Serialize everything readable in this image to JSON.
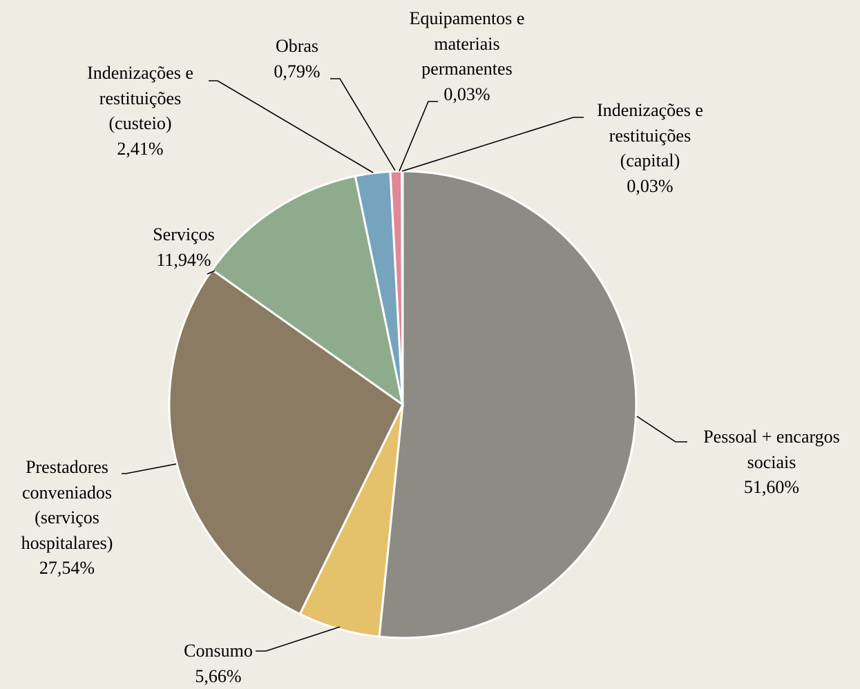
{
  "chart_data": {
    "type": "pie",
    "categories": [
      "Pessoal + encargos sociais",
      "Consumo",
      "Prestadores conveniados (serviços hospitalares)",
      "Serviços",
      "Indenizações e restituições (custeio)",
      "Obras",
      "Equipamentos e materiais permanentes",
      "Indenizações e restituições (capital)"
    ],
    "values": [
      51.6,
      5.66,
      27.54,
      11.94,
      2.41,
      0.79,
      0.03,
      0.03
    ],
    "value_labels": [
      "51,60%",
      "5,66%",
      "27,54%",
      "11,94%",
      "2,41%",
      "0,79%",
      "0,03%",
      "0,03%"
    ],
    "colors": [
      "#8c8c85",
      "#e6c16b",
      "#8a7b62",
      "#8fab8e",
      "#76a4be",
      "#e08896",
      "#d98a96",
      "#c59a9a"
    ]
  }
}
